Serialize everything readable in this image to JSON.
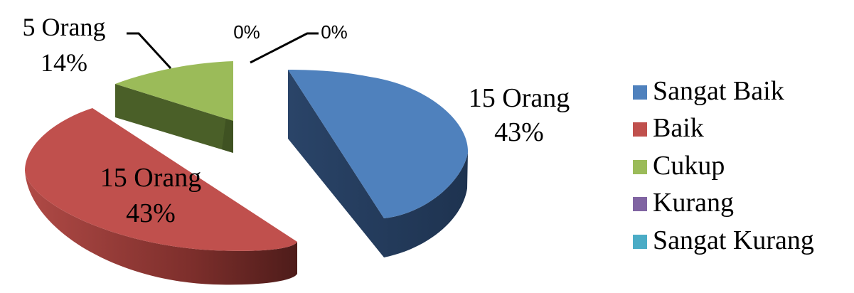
{
  "chart_data": {
    "type": "pie",
    "style": "3d-exploded",
    "title": "",
    "legend_position": "right",
    "slices": [
      {
        "name": "Sangat Baik",
        "value": 15,
        "count_label": "15 Orang",
        "percent_label": "43%",
        "color": "#4F81BD"
      },
      {
        "name": "Baik",
        "value": 15,
        "count_label": "15 Orang",
        "percent_label": "43%",
        "color": "#C0504D"
      },
      {
        "name": "Cukup",
        "value": 5,
        "count_label": "5 Orang",
        "percent_label": "14%",
        "color": "#9BBB59"
      },
      {
        "name": "Kurang",
        "value": 0,
        "count_label": "",
        "percent_label": "0%",
        "color": "#8064A2"
      },
      {
        "name": "Sangat Kurang",
        "value": 0,
        "count_label": "",
        "percent_label": "0%",
        "color": "#4BACC6"
      }
    ]
  }
}
